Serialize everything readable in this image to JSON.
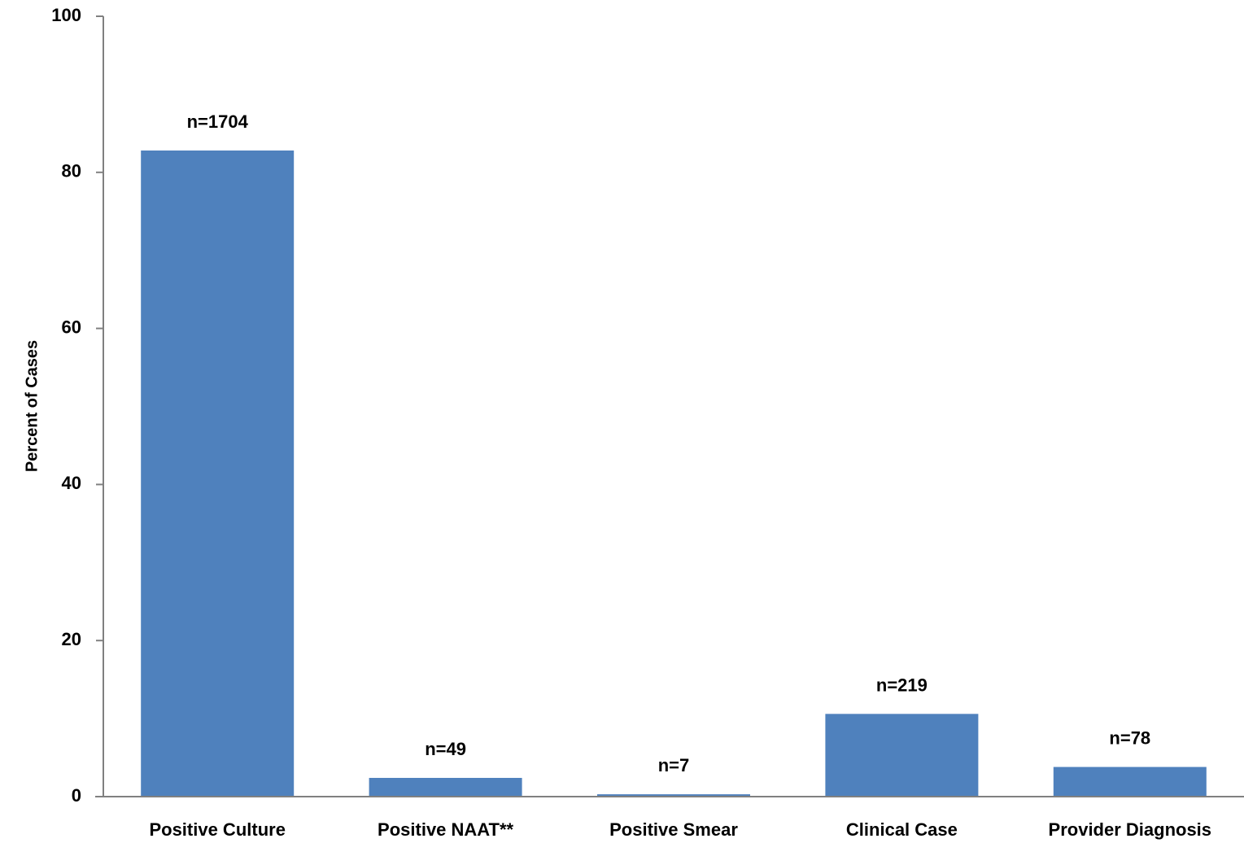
{
  "chart_data": {
    "type": "bar",
    "title": "",
    "xlabel": "",
    "ylabel": "Percent of Cases",
    "ylim": [
      0,
      100
    ],
    "yticks": [
      0,
      20,
      40,
      60,
      80,
      100
    ],
    "categories": [
      "Positive Culture",
      "Positive NAAT**",
      "Positive Smear",
      "Clinical Case",
      "Provider Diagnosis"
    ],
    "values": [
      82.8,
      2.4,
      0.3,
      10.6,
      3.8
    ],
    "data_labels": [
      "n=1704",
      "n=49",
      "n=7",
      "n=219",
      "n=78"
    ],
    "bar_color": "#4f81bd",
    "grid": false,
    "legend": "none"
  }
}
